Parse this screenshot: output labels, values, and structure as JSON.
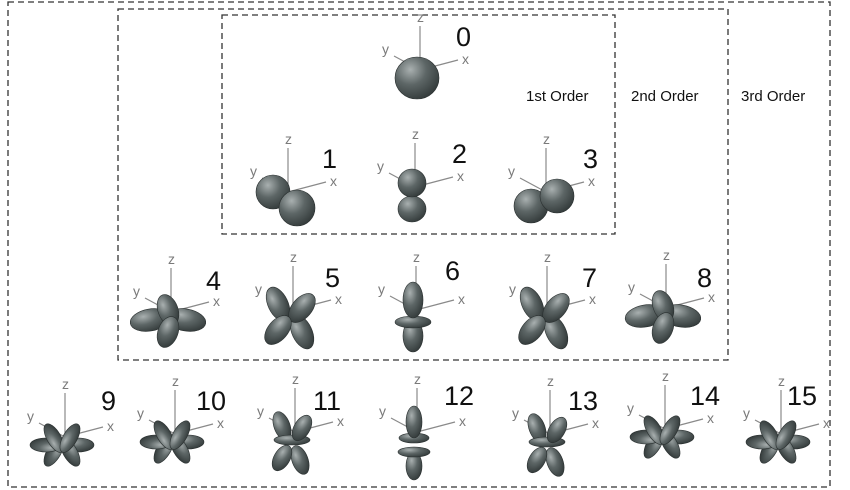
{
  "orders": [
    {
      "label": "1st Order"
    },
    {
      "label": "2nd Order"
    },
    {
      "label": "3rd Order"
    }
  ],
  "axes": {
    "x": "x",
    "y": "y",
    "z": "z"
  },
  "harmonics": [
    {
      "index": "0",
      "order": 0,
      "shape": "sphere"
    },
    {
      "index": "1",
      "order": 1,
      "shape": "dipole-y"
    },
    {
      "index": "2",
      "order": 1,
      "shape": "dipole-z"
    },
    {
      "index": "3",
      "order": 1,
      "shape": "dipole-x"
    },
    {
      "index": "4",
      "order": 2,
      "shape": "quad-horizontal"
    },
    {
      "index": "5",
      "order": 2,
      "shape": "quad-tilted"
    },
    {
      "index": "6",
      "order": 2,
      "shape": "zonal-z2"
    },
    {
      "index": "7",
      "order": 2,
      "shape": "quad-tilted"
    },
    {
      "index": "8",
      "order": 2,
      "shape": "quad-horizontal"
    },
    {
      "index": "9",
      "order": 3,
      "shape": "hex-horizontal"
    },
    {
      "index": "10",
      "order": 3,
      "shape": "hex-horizontal"
    },
    {
      "index": "11",
      "order": 3,
      "shape": "tesseral"
    },
    {
      "index": "12",
      "order": 3,
      "shape": "zonal-z3"
    },
    {
      "index": "13",
      "order": 3,
      "shape": "tesseral"
    },
    {
      "index": "14",
      "order": 3,
      "shape": "hex-horizontal"
    },
    {
      "index": "15",
      "order": 3,
      "shape": "hex-horizontal"
    }
  ]
}
